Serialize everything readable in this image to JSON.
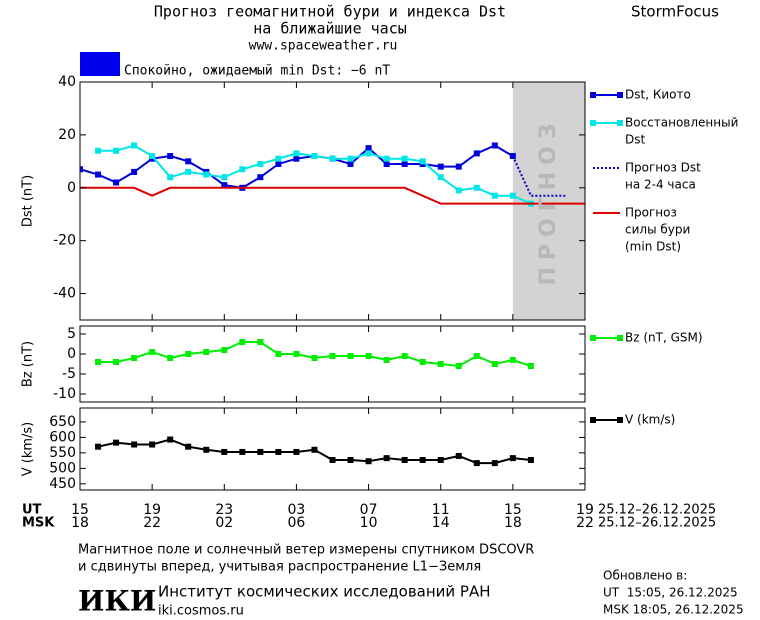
{
  "header": {
    "title": "Прогноз геомагнитной бури и индекса Dst",
    "subtitle": "на ближайшие часы",
    "url": "www.spaceweather.ru",
    "brand": "StormFocus",
    "status": "Спокойно, ожидаемый min Dst: −6 nT",
    "status_color": "#0000ee"
  },
  "time_axis": {
    "xlim": [
      0,
      28
    ],
    "rows": [
      {
        "name": "UT",
        "range": "25.12–26.12.2025",
        "xticks": [
          {
            "value": 0,
            "label": "15"
          },
          {
            "value": 4,
            "label": "19"
          },
          {
            "value": 8,
            "label": "23"
          },
          {
            "value": 12,
            "label": "03"
          },
          {
            "value": 16,
            "label": "07"
          },
          {
            "value": 20,
            "label": "11"
          },
          {
            "value": 24,
            "label": "15"
          },
          {
            "value": 28,
            "label": "19"
          }
        ]
      },
      {
        "name": "MSK",
        "range": "25.12–26.12.2025",
        "xticks": [
          {
            "value": 0,
            "label": "18"
          },
          {
            "value": 4,
            "label": "22"
          },
          {
            "value": 8,
            "label": "02"
          },
          {
            "value": 12,
            "label": "06"
          },
          {
            "value": 16,
            "label": "10"
          },
          {
            "value": 20,
            "label": "14"
          },
          {
            "value": 24,
            "label": "18"
          },
          {
            "value": 28,
            "label": "22"
          }
        ]
      }
    ]
  },
  "chart_data": [
    {
      "type": "line",
      "ylabel": "Dst (nT)",
      "ylim": [
        -50,
        40
      ],
      "yticks": [
        -40,
        -20,
        0,
        20,
        40
      ],
      "forecast_zone": {
        "xlim": [
          24,
          28
        ],
        "label": "ПРОГНОЗ"
      },
      "series": [
        {
          "name": [
            "Dst, Киото"
          ],
          "color": "#0000dd",
          "marker": true,
          "style": "solid",
          "x": [
            0,
            1,
            2,
            3,
            4,
            5,
            6,
            7,
            8,
            9,
            10,
            11,
            12,
            13,
            14,
            15,
            16,
            17,
            18,
            19,
            20,
            21,
            22,
            23,
            24
          ],
          "values": [
            7,
            5,
            2,
            6,
            11,
            12,
            10,
            6,
            1,
            0,
            4,
            9,
            11,
            12,
            11,
            9,
            15,
            9,
            9,
            9,
            8,
            8,
            13,
            16,
            12
          ]
        },
        {
          "name": [
            "Восстановленный",
            "Dst"
          ],
          "color": "#00e5e5",
          "marker": true,
          "style": "solid",
          "x": [
            1,
            2,
            3,
            4,
            5,
            6,
            7,
            8,
            9,
            10,
            11,
            12,
            13,
            14,
            15,
            16,
            17,
            18,
            19,
            20,
            21,
            22,
            23,
            24,
            25
          ],
          "values": [
            14,
            14,
            16,
            12,
            4,
            6,
            5,
            4,
            7,
            9,
            11,
            13,
            12,
            11,
            11,
            13,
            11,
            11,
            10,
            4,
            -1,
            0,
            -3,
            -3,
            -6
          ]
        },
        {
          "name": [
            "Прогноз Dst",
            "на 2-4 часа"
          ],
          "color": "#0000cc",
          "marker": false,
          "style": "dotted",
          "x": [
            24,
            25,
            26,
            27
          ],
          "values": [
            12,
            -3,
            -3,
            -3
          ]
        },
        {
          "name": [
            "Прогноз",
            "силы бури",
            "(min Dst)"
          ],
          "color": "#dd0000",
          "marker": false,
          "style": "solid",
          "x": [
            0,
            3,
            4,
            5,
            18,
            20,
            28
          ],
          "values": [
            0,
            0,
            -3,
            0,
            0,
            -6,
            -6
          ]
        }
      ]
    },
    {
      "type": "line",
      "ylabel": "Bz (nT)",
      "ylim": [
        -12,
        7
      ],
      "yticks": [
        -10,
        -5,
        0,
        5
      ],
      "series": [
        {
          "name": [
            "Bz (nT, GSM)"
          ],
          "color": "#00ee00",
          "marker": true,
          "style": "solid",
          "x": [
            1,
            2,
            3,
            4,
            5,
            6,
            7,
            8,
            9,
            10,
            11,
            12,
            13,
            14,
            15,
            16,
            17,
            18,
            19,
            20,
            21,
            22,
            23,
            24,
            25
          ],
          "values": [
            -2,
            -2,
            -1,
            0.5,
            -1,
            0,
            0.5,
            1,
            3,
            3,
            0,
            0,
            -1,
            -0.5,
            -0.5,
            -0.5,
            -1.5,
            -0.5,
            -2,
            -2.5,
            -3,
            -0.5,
            -2.5,
            -1.5,
            -3
          ]
        }
      ]
    },
    {
      "type": "line",
      "ylabel": "V (km/s)",
      "ylim": [
        430,
        695
      ],
      "yticks": [
        450,
        500,
        550,
        600,
        650
      ],
      "series": [
        {
          "name": [
            "V (km/s)"
          ],
          "color": "#000000",
          "marker": true,
          "style": "solid",
          "x": [
            1,
            2,
            3,
            4,
            5,
            6,
            7,
            8,
            9,
            10,
            11,
            12,
            13,
            14,
            15,
            16,
            17,
            18,
            19,
            20,
            21,
            22,
            23,
            24,
            25
          ],
          "values": [
            570,
            583,
            577,
            577,
            593,
            570,
            560,
            553,
            553,
            553,
            553,
            553,
            560,
            527,
            527,
            523,
            533,
            527,
            527,
            527,
            540,
            517,
            517,
            533,
            527
          ]
        }
      ]
    }
  ],
  "footer": {
    "note1": "Магнитное поле и солнечный ветер измерены спутником DSCOVR",
    "note2": "и сдвинуты вперед, учитывая распространение L1−Земля",
    "logo": "ИКИ",
    "institute": "Институт космических исследований РАН",
    "site": "iki.cosmos.ru",
    "updated": "Обновлено в:",
    "updated_ut": "UT  15:05, 26.12.2025",
    "updated_msk": "MSK 18:05, 26.12.2025"
  }
}
